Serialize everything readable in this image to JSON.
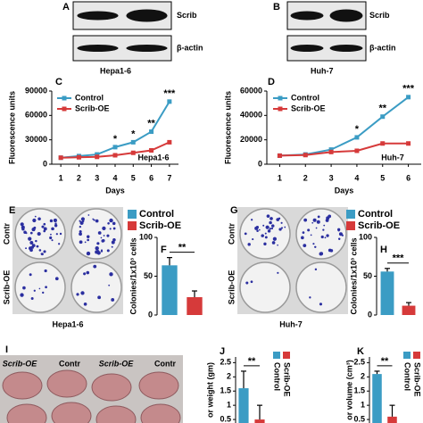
{
  "blots": [
    {
      "letter": "A",
      "bands": [
        "Scrib",
        "β-actin"
      ],
      "cell_line": "Hepa1-6"
    },
    {
      "letter": "B",
      "bands": [
        "Scrib",
        "β-actin"
      ],
      "cell_line": "Huh-7"
    }
  ],
  "colony_panels": [
    {
      "letter": "E",
      "rows": [
        "Contr",
        "Scrib-OE"
      ],
      "cell_line": "Hepa1-6"
    },
    {
      "letter": "G",
      "rows": [
        "Contr",
        "Scrib-OE"
      ],
      "cell_line": "Huh-7"
    }
  ],
  "tumor_panel": {
    "letter": "I",
    "labels": [
      "Scrib-OE",
      "Contr",
      "Scrib-OE",
      "Contr"
    ]
  },
  "chart_data": [
    {
      "type": "line",
      "letter": "C",
      "y_label": "Fluorescence units",
      "x_label": "Days",
      "inset_label": "Hepa1-6",
      "x": [
        1,
        2,
        3,
        4,
        5,
        6,
        7
      ],
      "xlim": [
        0.5,
        7.5
      ],
      "xticks": [
        1,
        2,
        3,
        4,
        5,
        6,
        7
      ],
      "ylim": [
        0,
        90000
      ],
      "yticks": [
        0,
        30000,
        60000,
        90000
      ],
      "series": [
        {
          "name": "Control",
          "color": "#3b9cc4",
          "values": [
            8000,
            10000,
            12000,
            21000,
            27000,
            40000,
            77000
          ]
        },
        {
          "name": "Scrib-OE",
          "color": "#d63a3a",
          "values": [
            8000,
            8500,
            9000,
            11000,
            14000,
            17000,
            27000
          ]
        }
      ],
      "annotations": [
        {
          "x": 4,
          "text": "*"
        },
        {
          "x": 5,
          "text": "*"
        },
        {
          "x": 6,
          "text": "**"
        },
        {
          "x": 7,
          "text": "***"
        }
      ]
    },
    {
      "type": "line",
      "letter": "D",
      "y_label": "Fluorescence units",
      "x_label": "Days",
      "inset_label": "Huh-7",
      "x": [
        1,
        2,
        3,
        4,
        5,
        6
      ],
      "xlim": [
        0.5,
        6.5
      ],
      "xticks": [
        1,
        2,
        3,
        4,
        5,
        6
      ],
      "ylim": [
        0,
        60000
      ],
      "yticks": [
        0,
        20000,
        40000,
        60000
      ],
      "series": [
        {
          "name": "Control",
          "color": "#3b9cc4",
          "values": [
            7000,
            8000,
            12000,
            22000,
            39000,
            55000
          ]
        },
        {
          "name": "Scrib-OE",
          "color": "#d63a3a",
          "values": [
            7000,
            7500,
            10000,
            11000,
            17000,
            17000
          ]
        }
      ],
      "annotations": [
        {
          "x": 4,
          "text": "*"
        },
        {
          "x": 5,
          "text": "**"
        },
        {
          "x": 6,
          "text": "***"
        }
      ]
    },
    {
      "type": "bar",
      "letter": "F",
      "y_label": "Colonies/1x10³ cells",
      "ylim": [
        0,
        100
      ],
      "yticks": [
        0,
        50,
        100
      ],
      "series": [
        {
          "name": "Control",
          "color": "#3b9cc4",
          "values": [
            64
          ],
          "errors": [
            10
          ]
        },
        {
          "name": "Scrib-OE",
          "color": "#d63a3a",
          "values": [
            23
          ],
          "errors": [
            8
          ]
        }
      ],
      "significance": "**"
    },
    {
      "type": "bar",
      "letter": "H",
      "y_label": "Colonies/1x10³ cells",
      "ylim": [
        0,
        100
      ],
      "yticks": [
        0,
        50,
        100
      ],
      "series": [
        {
          "name": "Control",
          "color": "#3b9cc4",
          "values": [
            56
          ],
          "errors": [
            4
          ]
        },
        {
          "name": "Scrib-OE",
          "color": "#d63a3a",
          "values": [
            12
          ],
          "errors": [
            4
          ]
        }
      ],
      "significance": "***"
    },
    {
      "type": "bar",
      "letter": "J",
      "y_label": "or weight (gm)",
      "ylim": [
        0,
        2.7
      ],
      "yticks": [
        0.5,
        1,
        1.5,
        2,
        2.5
      ],
      "legend": "vertical",
      "series": [
        {
          "name": "Control",
          "color": "#3b9cc4",
          "values": [
            1.6
          ],
          "errors": [
            0.6
          ]
        },
        {
          "name": "Scrib-OE",
          "color": "#d63a3a",
          "values": [
            0.5
          ],
          "errors": [
            0.5
          ]
        }
      ],
      "significance": "**"
    },
    {
      "type": "bar",
      "letter": "K",
      "y_label": "or volume (cm³)",
      "ylim": [
        0,
        2.7
      ],
      "yticks": [
        0.5,
        1,
        1.5,
        2,
        2.5
      ],
      "legend": "vertical",
      "series": [
        {
          "name": "Control",
          "color": "#3b9cc4",
          "values": [
            2.1
          ],
          "errors": [
            0.1
          ]
        },
        {
          "name": "Scrib-OE",
          "color": "#d63a3a",
          "values": [
            0.6
          ],
          "errors": [
            0.4
          ]
        }
      ],
      "significance": "**"
    }
  ]
}
